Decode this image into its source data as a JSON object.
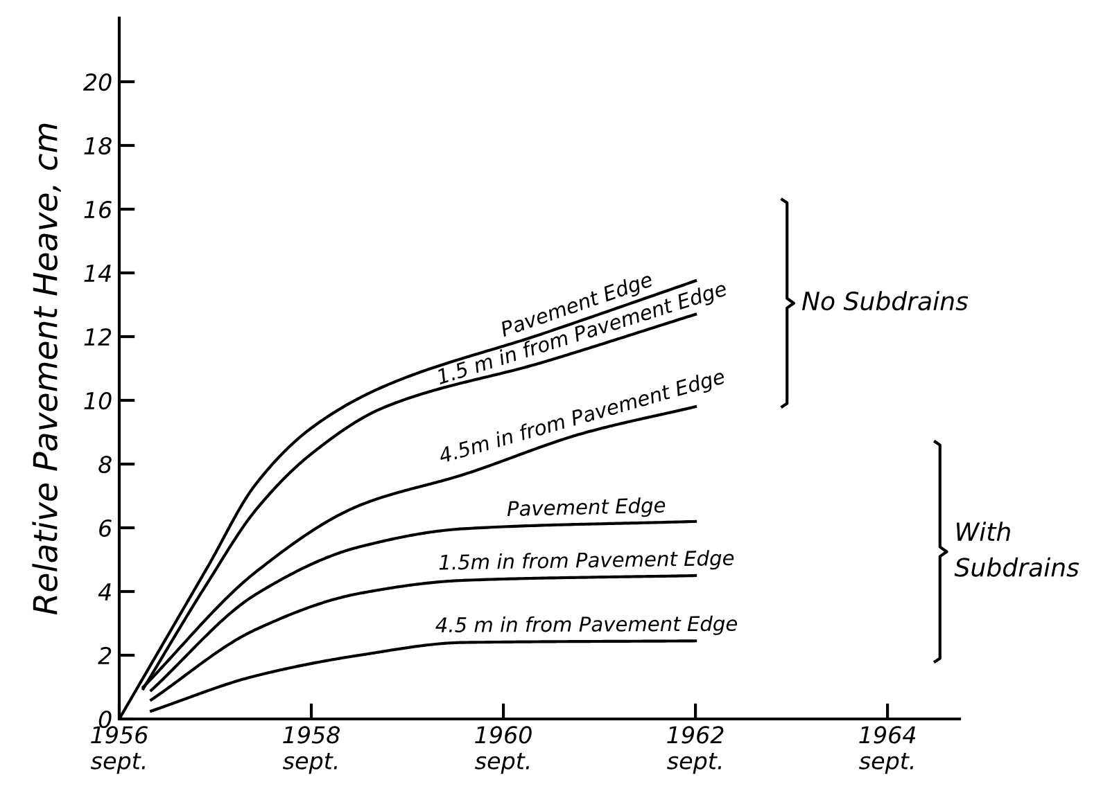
{
  "chart_data": {
    "type": "line",
    "ylabel": "Relative Pavement Heave, cm",
    "xlim": [
      "1956-09",
      "1965-06"
    ],
    "ylim": [
      0,
      22
    ],
    "xticks": [
      {
        "value": "1956-09",
        "label": "1956\nsept."
      },
      {
        "value": "1958-09",
        "label": "1958\nsept."
      },
      {
        "value": "1960-09",
        "label": "1960\nsept."
      },
      {
        "value": "1962-09",
        "label": "1962\nsept."
      },
      {
        "value": "1964-09",
        "label": "1964\nsept."
      }
    ],
    "yticks": [
      0,
      2,
      4,
      6,
      8,
      10,
      12,
      14,
      16,
      18,
      20
    ],
    "series": [
      {
        "name": "Pavement Edge",
        "color": "#000000",
        "x": [
          "1956-09",
          "1957-08",
          "1958-02",
          "1958-09",
          "1959-06",
          "1961-02",
          "1962-09"
        ],
        "values": [
          0,
          4.75,
          7.35,
          9.13,
          10.43,
          12.1,
          13.75
        ]
      },
      {
        "name": "1.5 m in from Pavement Edge",
        "color": "#000000",
        "x": [
          "1956-12",
          "1957-08",
          "1958-02",
          "1958-09",
          "1959-06",
          "1961-02",
          "1962-09"
        ],
        "values": [
          0.95,
          4.26,
          6.54,
          8.32,
          9.77,
          11.2,
          12.7
        ]
      },
      {
        "name": "4.5m in from Pavement Edge",
        "color": "#000000",
        "x": [
          "1956-12",
          "1958-02",
          "1959-03",
          "1960-04",
          "1961-07",
          "1962-09"
        ],
        "values": [
          1.0,
          4.6,
          6.7,
          7.67,
          8.97,
          9.8
        ]
      },
      {
        "name": "Pavement Edge",
        "color": "#000000",
        "x": [
          "1957-01",
          "1958-02",
          "1959-03",
          "1960-04",
          "1962-09"
        ],
        "values": [
          0.9,
          3.9,
          5.4,
          5.97,
          6.2
        ]
      },
      {
        "name": "1.5m in from Pavement Edge",
        "color": "#000000",
        "x": [
          "1957-01",
          "1958-02",
          "1959-03",
          "1960-04",
          "1962-09"
        ],
        "values": [
          0.6,
          2.8,
          3.94,
          4.35,
          4.5
        ]
      },
      {
        "name": "4.5 m in from Pavement Edge",
        "color": "#000000",
        "x": [
          "1957-01",
          "1958-02",
          "1959-03",
          "1960-04",
          "1962-09"
        ],
        "values": [
          0.25,
          1.35,
          2.0,
          2.4,
          2.45
        ]
      }
    ],
    "annotations": [
      "No Subdrains",
      "With\nSubdrains"
    ]
  }
}
